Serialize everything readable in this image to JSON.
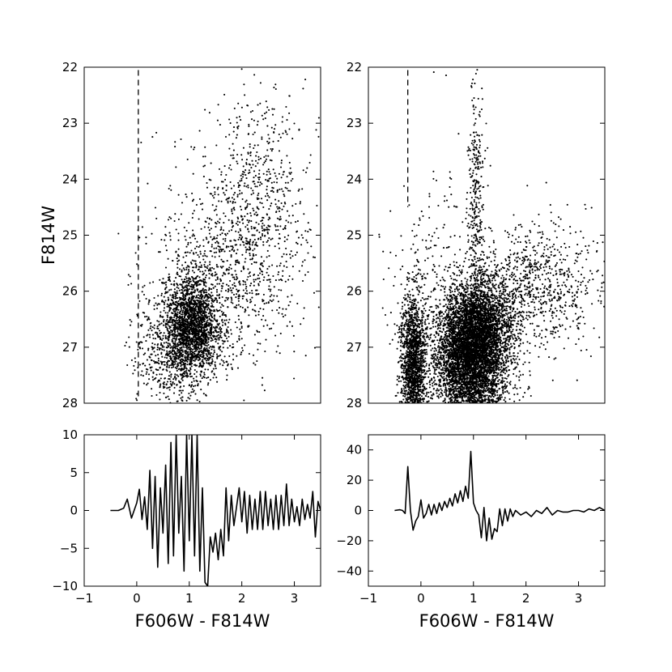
{
  "chart_data": [
    {
      "id": "top-left",
      "type": "scatter",
      "xlabel": "",
      "ylabel": "F814W",
      "xlim": [
        -1,
        3.5
      ],
      "ylim": [
        28,
        22
      ],
      "yticks": [
        22,
        23,
        24,
        25,
        26,
        27,
        28
      ],
      "x_inverted": false,
      "y_inverted": true,
      "reference_line": {
        "x": 0.03,
        "style": "dashed",
        "y_range": [
          22.05,
          27.9
        ]
      },
      "clusters": [
        {
          "center": [
            1.05,
            26.6
          ],
          "spread": [
            0.28,
            0.45
          ],
          "count": 2100
        },
        {
          "center": [
            1.7,
            25.6
          ],
          "spread": [
            0.7,
            0.9
          ],
          "count": 900
        },
        {
          "center": [
            2.3,
            24.2
          ],
          "spread": [
            0.45,
            1.0
          ],
          "count": 500
        },
        {
          "center": [
            0.7,
            27.2
          ],
          "spread": [
            0.35,
            0.4
          ],
          "count": 400
        },
        {
          "center": [
            0.1,
            26.8
          ],
          "spread": [
            0.15,
            0.7
          ],
          "count": 60
        }
      ]
    },
    {
      "id": "top-right",
      "type": "scatter",
      "xlabel": "",
      "ylabel": "",
      "xlim": [
        -1,
        3.5
      ],
      "ylim": [
        28,
        22
      ],
      "yticks": [
        22,
        23,
        24,
        25,
        26,
        27,
        28
      ],
      "x_inverted": false,
      "y_inverted": true,
      "reference_line": {
        "x": -0.25,
        "style": "dashed",
        "y_range": [
          22.05,
          24.5
        ]
      },
      "clusters": [
        {
          "center": [
            -0.15,
            27.3
          ],
          "spread": [
            0.12,
            0.6
          ],
          "count": 1600
        },
        {
          "center": [
            0.95,
            27.2
          ],
          "spread": [
            0.35,
            0.6
          ],
          "count": 5200
        },
        {
          "center": [
            1.15,
            26.6
          ],
          "spread": [
            0.28,
            0.4
          ],
          "count": 1500
        },
        {
          "center": [
            1.05,
            24.6
          ],
          "spread": [
            0.08,
            1.2
          ],
          "count": 350
        },
        {
          "center": [
            2.1,
            25.9
          ],
          "spread": [
            0.65,
            0.55
          ],
          "count": 900
        },
        {
          "center": [
            0.3,
            26.0
          ],
          "spread": [
            0.5,
            1.2
          ],
          "count": 250
        }
      ]
    },
    {
      "id": "bottom-left",
      "type": "line",
      "xlabel": "F606W - F814W",
      "ylabel": "",
      "xlim": [
        -1,
        3.5
      ],
      "ylim": [
        -10,
        10
      ],
      "xticks": [
        -1,
        0,
        1,
        2,
        3
      ],
      "yticks": [
        -10,
        -5,
        0,
        5,
        10
      ],
      "x": [
        -0.5,
        -0.35,
        -0.25,
        -0.18,
        -0.1,
        0.0,
        0.05,
        0.1,
        0.15,
        0.2,
        0.25,
        0.3,
        0.35,
        0.4,
        0.45,
        0.5,
        0.55,
        0.6,
        0.65,
        0.7,
        0.75,
        0.8,
        0.85,
        0.9,
        0.95,
        1.0,
        1.05,
        1.1,
        1.15,
        1.2,
        1.25,
        1.3,
        1.35,
        1.4,
        1.45,
        1.5,
        1.55,
        1.6,
        1.65,
        1.7,
        1.75,
        1.8,
        1.85,
        1.9,
        1.95,
        2.0,
        2.05,
        2.1,
        2.15,
        2.2,
        2.25,
        2.3,
        2.35,
        2.4,
        2.45,
        2.5,
        2.55,
        2.6,
        2.65,
        2.7,
        2.75,
        2.8,
        2.85,
        2.9,
        2.95,
        3.0,
        3.05,
        3.1,
        3.15,
        3.2,
        3.25,
        3.3,
        3.35,
        3.4,
        3.45,
        3.5
      ],
      "y": [
        0,
        0,
        0.3,
        1.5,
        -1.0,
        1.0,
        2.8,
        -1.2,
        1.8,
        -2.5,
        5.3,
        -5.0,
        4.5,
        -7.5,
        3.0,
        -3.0,
        6.0,
        -7.0,
        9.0,
        -6.0,
        10.0,
        -3.0,
        4.5,
        -8.0,
        10.0,
        -4.0,
        10.0,
        -6.0,
        10.0,
        -8.0,
        3.0,
        -9.5,
        -10.0,
        -3.5,
        -5.5,
        -3.0,
        -6.5,
        -2.5,
        -6.0,
        3.0,
        -4.0,
        2.0,
        -2.0,
        0.5,
        3.0,
        -1.5,
        2.5,
        -3.0,
        2.0,
        -2.5,
        1.5,
        -2.5,
        2.5,
        -2.5,
        2.5,
        -2.0,
        1.5,
        -2.5,
        2.0,
        -2.5,
        2.0,
        -2.0,
        3.5,
        -2.0,
        1.5,
        -1.5,
        0.5,
        -2.0,
        1.5,
        -1.2,
        0.8,
        -1.0,
        2.5,
        -3.5,
        1.2,
        0.0
      ]
    },
    {
      "id": "bottom-right",
      "type": "line",
      "xlabel": "F606W - F814W",
      "ylabel": "",
      "xlim": [
        -1,
        3.5
      ],
      "ylim": [
        -50,
        50
      ],
      "xticks": [
        -1,
        0,
        1,
        2,
        3
      ],
      "yticks": [
        -40,
        -20,
        0,
        20,
        40
      ],
      "x": [
        -0.5,
        -0.4,
        -0.35,
        -0.3,
        -0.25,
        -0.2,
        -0.15,
        -0.1,
        -0.05,
        0.0,
        0.05,
        0.1,
        0.15,
        0.2,
        0.25,
        0.3,
        0.35,
        0.4,
        0.45,
        0.5,
        0.55,
        0.6,
        0.65,
        0.7,
        0.75,
        0.8,
        0.85,
        0.9,
        0.95,
        1.0,
        1.05,
        1.1,
        1.15,
        1.2,
        1.25,
        1.3,
        1.35,
        1.4,
        1.45,
        1.5,
        1.55,
        1.6,
        1.65,
        1.7,
        1.75,
        1.8,
        1.9,
        2.0,
        2.1,
        2.2,
        2.3,
        2.4,
        2.5,
        2.6,
        2.7,
        2.8,
        2.9,
        3.0,
        3.1,
        3.2,
        3.3,
        3.4,
        3.5
      ],
      "y": [
        0,
        0.5,
        0,
        -2.0,
        29.0,
        0,
        -13.0,
        -7.0,
        -4.0,
        7.0,
        -5.0,
        -2.0,
        4.0,
        -3.0,
        4.0,
        -2.0,
        5.0,
        0,
        6.0,
        2.0,
        8.0,
        3.0,
        11.0,
        5.0,
        13.0,
        6.0,
        16.0,
        8.0,
        39.0,
        5.0,
        0,
        -3.0,
        -18.0,
        2.0,
        -20.0,
        -5.0,
        -19.0,
        -12.0,
        -14.0,
        1.0,
        -10.0,
        1.0,
        -7.0,
        1.0,
        -4.0,
        0,
        -3.0,
        -1.0,
        -4.0,
        0,
        -2.0,
        2.0,
        -3.0,
        0,
        -1.0,
        -1.0,
        0,
        0,
        -1.0,
        1.0,
        0,
        2.0,
        0
      ]
    }
  ]
}
